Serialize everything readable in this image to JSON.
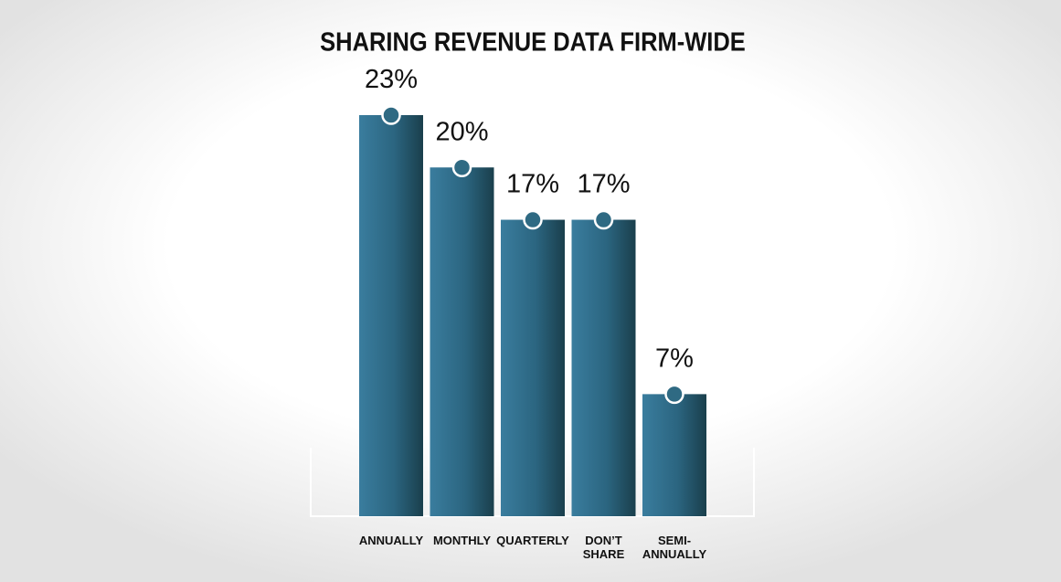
{
  "chart_data": {
    "type": "bar",
    "title": "SHARING REVENUE DATA FIRM-WIDE",
    "categories": [
      [
        "ANNUALLY"
      ],
      [
        "MONTHLY"
      ],
      [
        "QUARTERLY"
      ],
      [
        "DON’T",
        "SHARE"
      ],
      [
        "SEMI-",
        "ANNUALLY"
      ]
    ],
    "values": [
      23,
      20,
      17,
      17,
      7
    ],
    "value_labels": [
      "23%",
      "20%",
      "17%",
      "17%",
      "7%"
    ],
    "color": "#2f6a83"
  }
}
